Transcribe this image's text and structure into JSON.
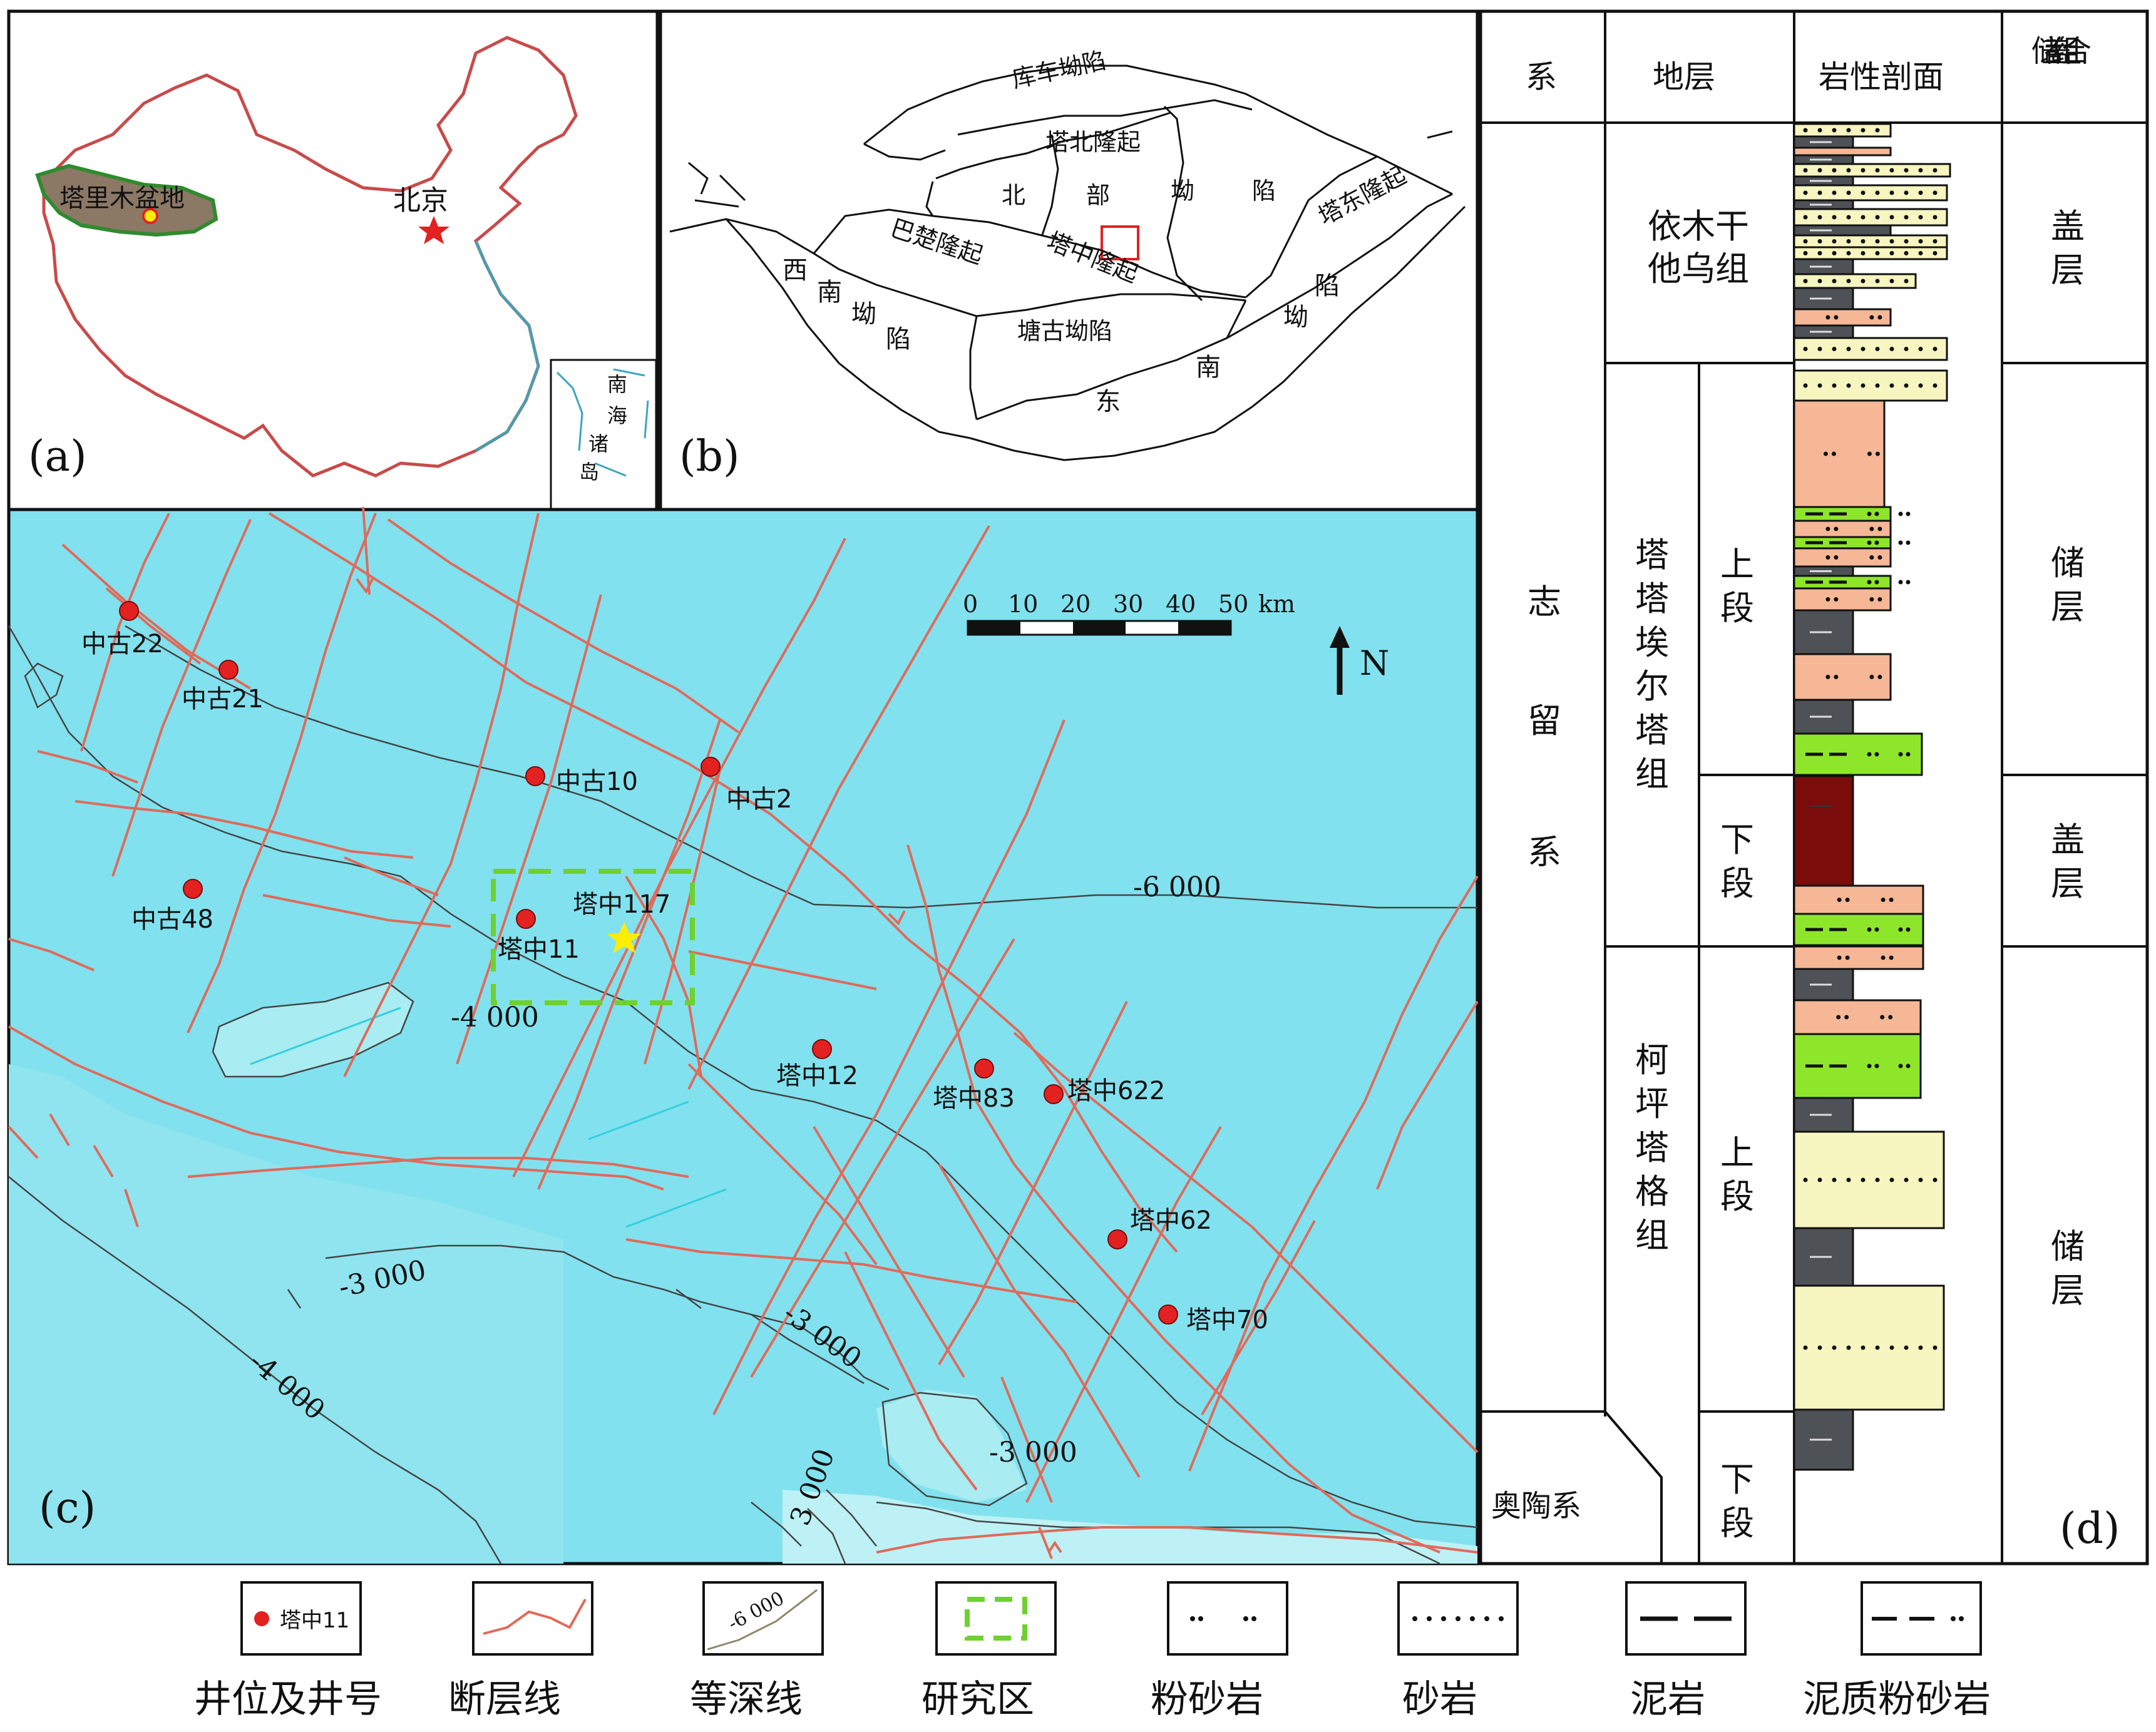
{
  "panel_a": {
    "label": "(a)",
    "basin_label": "塔里木盆地",
    "capital_label": "北京",
    "inset_label": [
      "南",
      "海",
      "诸",
      "岛"
    ]
  },
  "panel_b": {
    "label": "(b)",
    "units": {
      "kuche": "库车坳陷",
      "tabei": "塔北隆起",
      "bei": "北",
      "bu": "部",
      "ao": "坳",
      "xian": "陷",
      "tadong": "塔东隆起",
      "bachu": "巴楚隆起",
      "tazhong": "塔中隆起",
      "xinan": [
        "西",
        "南",
        "坳",
        "陷"
      ],
      "tanggu": "塘古坳陷",
      "dongnan": [
        "东",
        "南",
        "坳",
        "陷"
      ]
    }
  },
  "panel_c": {
    "label": "(c)",
    "north": "N",
    "scale_ticks": [
      "0",
      "10",
      "20",
      "30",
      "40",
      "50"
    ],
    "scale_unit": "km",
    "wells": [
      "中古22",
      "中古21",
      "中古10",
      "中古2",
      "中古48",
      "塔中11",
      "塔中117",
      "塔中12",
      "塔中83",
      "塔中622",
      "塔中62",
      "塔中70"
    ],
    "contours": [
      "-6 000",
      "-4 000",
      "-3 000",
      "-3 000",
      "-4 000",
      "-3 000",
      "3 000"
    ]
  },
  "panel_d": {
    "label": "(d)",
    "headers": {
      "system": "系",
      "strata": "地层",
      "lith": "岩性剖面",
      "seal": "储盖组合"
    },
    "system_silurian": [
      "志",
      "留",
      "系"
    ],
    "system_ordovician": "奥陶系",
    "formations": {
      "yimugan": [
        "依木干",
        "他乌组"
      ],
      "tataaierta": [
        "塔",
        "塔",
        "埃",
        "尔",
        "塔",
        "组"
      ],
      "keping": [
        "柯",
        "坪",
        "塔",
        "格",
        "组"
      ]
    },
    "members": {
      "upper": [
        "上",
        "段"
      ],
      "lower": [
        "下",
        "段"
      ]
    },
    "roles": {
      "cap": [
        "盖",
        "层"
      ],
      "reservoir": [
        "储",
        "层"
      ]
    }
  },
  "legend": {
    "well_sample": "塔中11",
    "contour_sample": "-6 000",
    "items": [
      "井位及井号",
      "断层线",
      "等深线",
      "研究区",
      "粉砂岩",
      "砂岩",
      "泥岩",
      "泥质粉砂岩"
    ]
  },
  "colors": {
    "basin": "#8b7865",
    "basin_outline": "#2e8b2e",
    "map_bg": "#82e1ee",
    "map_light": "#a9ecf2",
    "fault": "#e06a5a",
    "well": "#e32121",
    "study_area": "#6fd12f",
    "star": "#ffee00",
    "siltstone": "#f5b795",
    "sandstone": "#f7f5c0",
    "mudstone": "#4e5156",
    "argillaceous_siltstone": "#8ee62a",
    "red_mudstone": "#7a0c0c"
  }
}
